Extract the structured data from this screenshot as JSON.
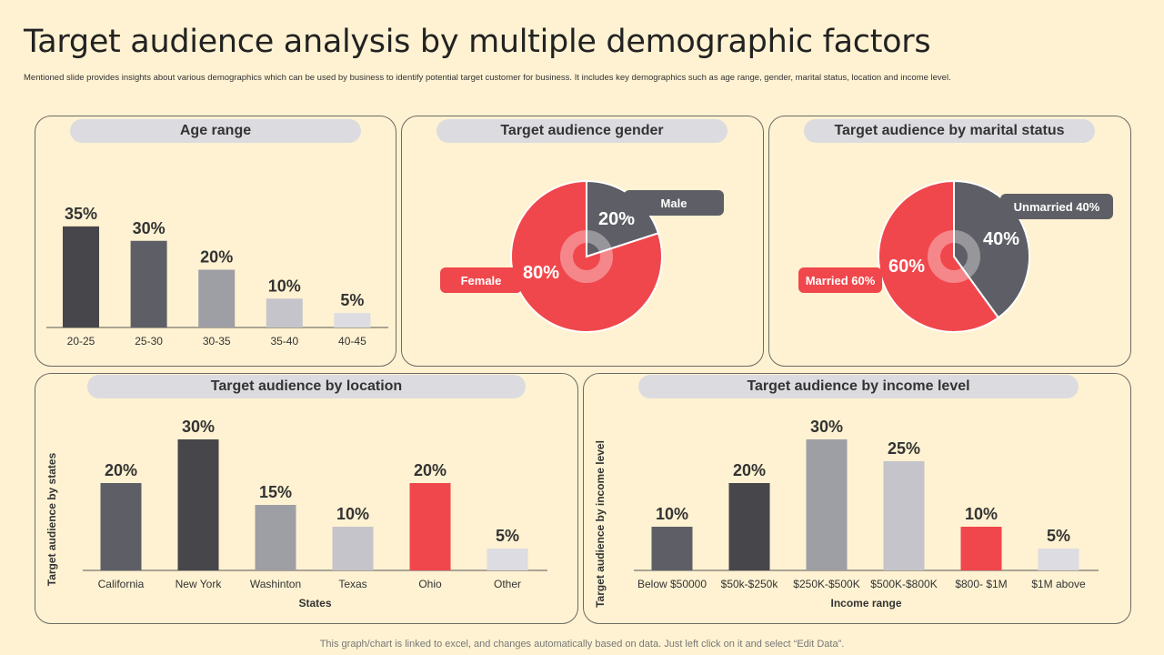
{
  "page": {
    "title": "Target audience analysis by multiple demographic factors",
    "subtitle": "Mentioned slide provides insights about various demographics which can be used by business to identify potential target customer for business. It includes key demographics such as age range, gender, marital status, location and income level.",
    "footer": "This graph/chart is linked to excel,  and changes automatically based on data. Just left click on it and select “Edit Data”."
  },
  "colors": {
    "dark": "#46464B",
    "mid_dark": "#5E5F66",
    "mid": "#9E9EA5",
    "light": "#C4C4CA",
    "lighter": "#DCDCE2",
    "red": "#F0474C",
    "pill": "#DCDCE0"
  },
  "chart_data": [
    {
      "id": "age",
      "type": "bar",
      "title": "Age range",
      "categories": [
        "20-25",
        "25-30",
        "30-35",
        "35-40",
        "40-45"
      ],
      "values": [
        35,
        30,
        20,
        10,
        5
      ],
      "labels": [
        "35%",
        "30%",
        "20%",
        "10%",
        "5%"
      ],
      "bar_colors": [
        "#46464B",
        "#5E5F66",
        "#9E9EA5",
        "#C4C4CA",
        "#DCDCE2"
      ],
      "xlabel": "",
      "ylabel": "",
      "ylim": [
        0,
        40
      ]
    },
    {
      "id": "gender",
      "type": "pie",
      "title": "Target audience gender",
      "slices": [
        {
          "name": "Male",
          "value": 20,
          "label": "20%",
          "color": "#5E5F66",
          "callout_color": "#5E5F66"
        },
        {
          "name": "Female",
          "value": 80,
          "label": "80%",
          "color": "#F0474C",
          "callout_color": "#F0474C"
        }
      ]
    },
    {
      "id": "marital",
      "type": "pie",
      "title": "Target audience by marital status",
      "slices": [
        {
          "name": "Unmarried 40%",
          "value": 40,
          "label": "40%",
          "color": "#5E5F66",
          "callout_color": "#5E5F66"
        },
        {
          "name": "Married 60%",
          "value": 60,
          "label": "60%",
          "color": "#F0474C",
          "callout_color": "#F0474C"
        }
      ]
    },
    {
      "id": "location",
      "type": "bar",
      "title": "Target audience by location",
      "categories": [
        "California",
        "New York",
        "Washinton",
        "Texas",
        "Ohio",
        "Other"
      ],
      "values": [
        20,
        30,
        15,
        10,
        20,
        5
      ],
      "labels": [
        "20%",
        "30%",
        "15%",
        "10%",
        "20%",
        "5%"
      ],
      "bar_colors": [
        "#5E5F66",
        "#46464B",
        "#9E9EA5",
        "#C4C4CA",
        "#F0474C",
        "#DCDCE2"
      ],
      "xlabel": "States",
      "ylabel": "Target audience by states",
      "ylim": [
        0,
        30
      ]
    },
    {
      "id": "income",
      "type": "bar",
      "title": "Target audience by income level",
      "categories": [
        "Below $50000",
        "$50k-$250k",
        "$250K-$500K",
        "$500K-$800K",
        "$800- $1M",
        "$1M above"
      ],
      "values": [
        10,
        20,
        30,
        25,
        10,
        5
      ],
      "labels": [
        "10%",
        "20%",
        "30%",
        "25%",
        "10%",
        "5%"
      ],
      "bar_colors": [
        "#5E5F66",
        "#46464B",
        "#9E9EA5",
        "#C4C4CA",
        "#F0474C",
        "#DCDCE2"
      ],
      "xlabel": "Income range",
      "ylabel": "Target audience by income level",
      "ylim": [
        0,
        30
      ]
    }
  ]
}
